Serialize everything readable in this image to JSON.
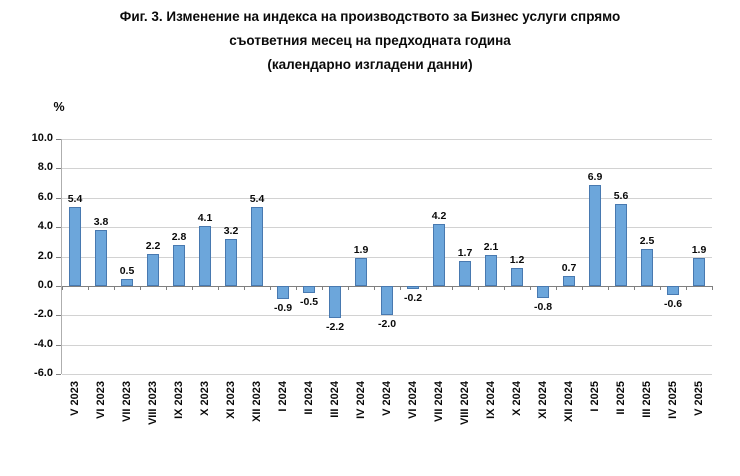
{
  "figure_title": {
    "line1": "Фиг. 3. Изменение на индекса на производството за Бизнес услуги спрямо",
    "line2": "съответния месец на предходната година",
    "line3": "(календарно изгладени данни)"
  },
  "y_axis_unit_label": "%",
  "chart_data": {
    "type": "bar",
    "title": "Фиг. 3. Изменение на индекса на производството за Бизнес услуги спрямо съответния месец на предходната година (календарно изгладени данни)",
    "xlabel": "",
    "ylabel": "%",
    "ylim": [
      -6.0,
      10.0
    ],
    "yticks": [
      "10.0",
      "8.0",
      "6.0",
      "4.0",
      "2.0",
      "0.0",
      "-2.0",
      "-4.0",
      "-6.0"
    ],
    "grid": true,
    "legend_position": "none",
    "data_labels": true,
    "bar_color": "#6ca6db",
    "bar_border_color": "#4879b0",
    "categories": [
      "V 2023",
      "VI 2023",
      "VII 2023",
      "VIII 2023",
      "IX 2023",
      "X 2023",
      "XI 2023",
      "XII 2023",
      "I 2024",
      "II 2024",
      "III 2024",
      "IV 2024",
      "V 2024",
      "VI 2024",
      "VII 2024",
      "VIII 2024",
      "IX 2024",
      "X 2024",
      "XI 2024",
      "XII 2024",
      "I 2025",
      "II 2025",
      "III 2025",
      "IV 2025",
      "V 2025"
    ],
    "values": [
      5.4,
      3.8,
      0.5,
      2.2,
      2.8,
      4.1,
      3.2,
      5.4,
      -0.9,
      -0.5,
      -2.2,
      1.9,
      -2.0,
      -0.2,
      4.2,
      1.7,
      2.1,
      1.2,
      -0.8,
      0.7,
      6.9,
      5.6,
      2.5,
      -0.6,
      1.9
    ]
  }
}
